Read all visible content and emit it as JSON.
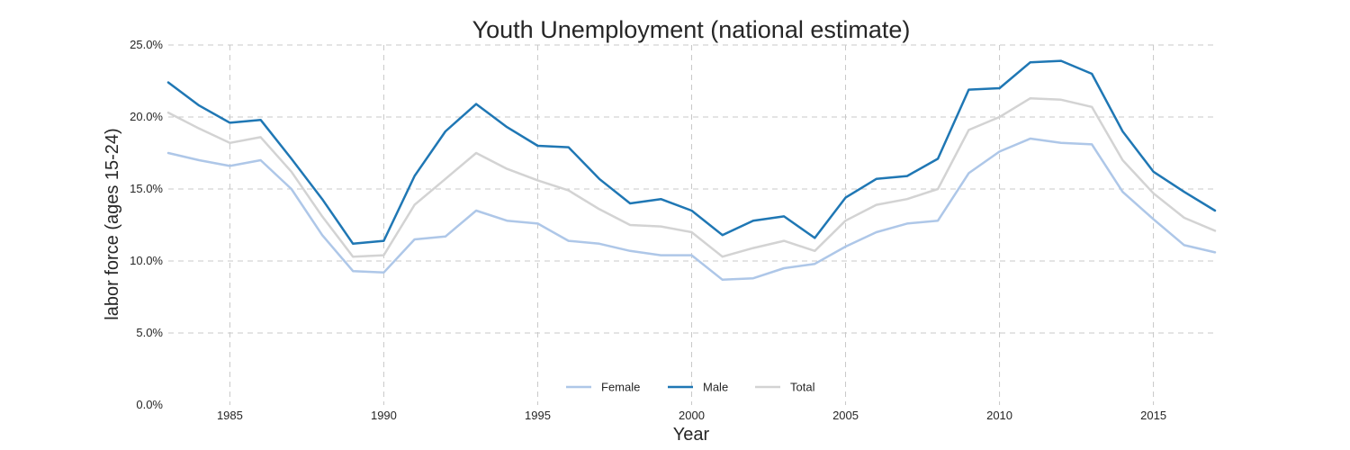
{
  "chart_data": {
    "type": "line",
    "title": "Youth Unemployment (national estimate)",
    "xlabel": "Year",
    "ylabel": "labor force (ages 15-24)",
    "xlim": [
      1983,
      2017
    ],
    "ylim": [
      0,
      25
    ],
    "x_ticks": [
      1985,
      1990,
      1995,
      2000,
      2005,
      2010,
      2015
    ],
    "y_ticks": [
      0,
      5,
      10,
      15,
      20,
      25
    ],
    "y_tick_labels": [
      "0.0%",
      "5.0%",
      "10.0%",
      "15.0%",
      "20.0%",
      "25.0%"
    ],
    "grid": true,
    "legend_position": "bottom-center",
    "x": [
      1983,
      1984,
      1985,
      1986,
      1987,
      1988,
      1989,
      1990,
      1991,
      1992,
      1993,
      1994,
      1995,
      1996,
      1997,
      1998,
      1999,
      2000,
      2001,
      2002,
      2003,
      2004,
      2005,
      2006,
      2007,
      2008,
      2009,
      2010,
      2011,
      2012,
      2013,
      2014,
      2015,
      2016,
      2017
    ],
    "series": [
      {
        "name": "Female",
        "color": "#aec7e8",
        "values": [
          17.5,
          17.0,
          16.6,
          17.0,
          15.0,
          11.8,
          9.3,
          9.2,
          11.5,
          11.7,
          13.5,
          12.8,
          12.6,
          11.4,
          11.2,
          10.7,
          10.4,
          10.4,
          8.7,
          8.8,
          9.5,
          9.8,
          11.0,
          12.0,
          12.6,
          12.8,
          16.1,
          17.6,
          18.5,
          18.2,
          18.1,
          14.8,
          12.9,
          11.1,
          10.6
        ]
      },
      {
        "name": "Male",
        "color": "#1f77b4",
        "values": [
          22.4,
          20.8,
          19.6,
          19.8,
          17.1,
          14.3,
          11.2,
          11.4,
          15.9,
          19.0,
          20.9,
          19.3,
          18.0,
          17.9,
          15.7,
          14.0,
          14.3,
          13.5,
          11.8,
          12.8,
          13.1,
          11.6,
          14.4,
          15.7,
          15.9,
          17.1,
          21.9,
          22.0,
          23.8,
          23.9,
          23.0,
          19.0,
          16.2,
          14.8,
          13.5
        ]
      },
      {
        "name": "Total",
        "color": "#d3d3d3",
        "values": [
          20.3,
          19.2,
          18.2,
          18.6,
          16.2,
          13.1,
          10.3,
          10.4,
          13.9,
          15.7,
          17.5,
          16.4,
          15.6,
          14.9,
          13.6,
          12.5,
          12.4,
          12.0,
          10.3,
          10.9,
          11.4,
          10.7,
          12.8,
          13.9,
          14.3,
          15.0,
          19.1,
          20.0,
          21.3,
          21.2,
          20.7,
          17.0,
          14.7,
          13.0,
          12.1
        ]
      }
    ]
  }
}
